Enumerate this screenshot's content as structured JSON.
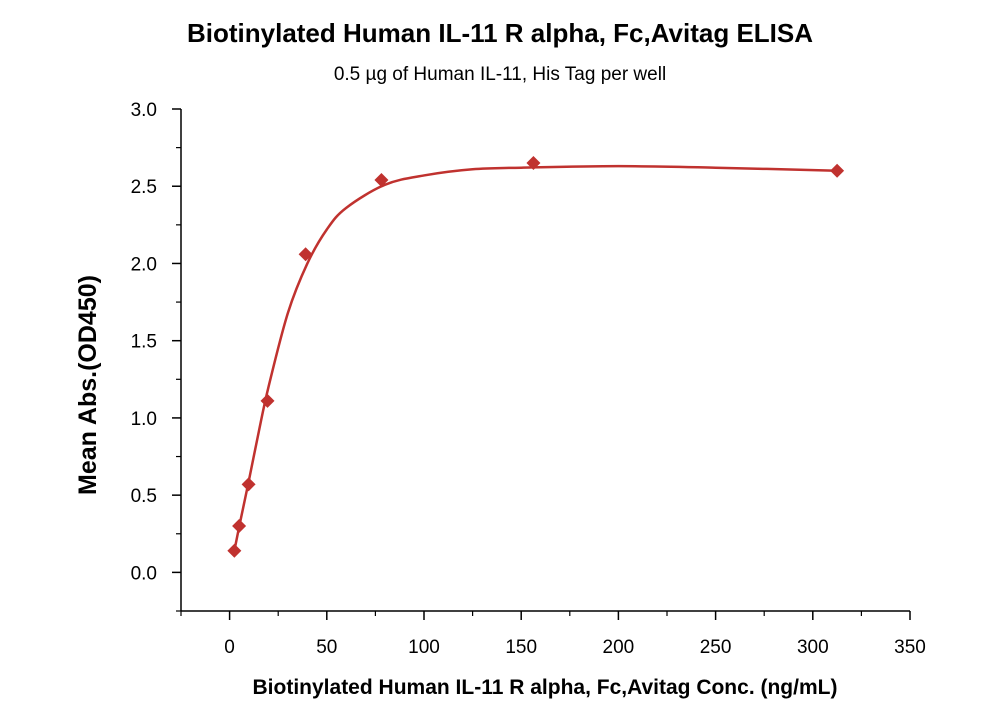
{
  "chart_data": {
    "type": "scatter",
    "title": "Biotinylated Human IL-11 R alpha, Fc,Avitag ELISA",
    "subtitle": "0.5 µg of Human IL-11, His Tag per well",
    "xlabel": "Biotinylated Human IL-11 R alpha, Fc,Avitag Conc. (ng/mL)",
    "ylabel": "Mean Abs.(OD450)",
    "xlim": [
      -25,
      350
    ],
    "ylim": [
      -0.25,
      3.0
    ],
    "x_ticks": [
      0,
      50,
      100,
      150,
      200,
      250,
      300,
      350
    ],
    "x_tick_labels": [
      "0",
      "50",
      "100",
      "150",
      "200",
      "250",
      "300",
      "350"
    ],
    "y_ticks": [
      0.0,
      0.5,
      1.0,
      1.5,
      2.0,
      2.5,
      3.0
    ],
    "y_tick_labels": [
      "0.0",
      "0.5",
      "1.0",
      "1.5",
      "2.0",
      "2.5",
      "3.0"
    ],
    "grid": false,
    "series": [
      {
        "marker": "diamond",
        "color": "#c0322f",
        "x": [
          2.44,
          4.88,
          9.77,
          19.5,
          39.1,
          78.1,
          156.3,
          312.5
        ],
        "y": [
          0.14,
          0.3,
          0.57,
          1.11,
          2.06,
          2.54,
          2.65,
          2.6
        ]
      }
    ],
    "fit_curve": {
      "color": "#c0322f",
      "x": [
        2.44,
        5,
        10,
        15,
        20,
        30,
        40,
        50,
        60,
        80,
        100,
        125,
        150,
        200,
        250,
        312.5
      ],
      "y": [
        0.14,
        0.3,
        0.6,
        0.91,
        1.2,
        1.68,
        2.0,
        2.22,
        2.36,
        2.51,
        2.57,
        2.61,
        2.62,
        2.63,
        2.62,
        2.6
      ]
    }
  }
}
